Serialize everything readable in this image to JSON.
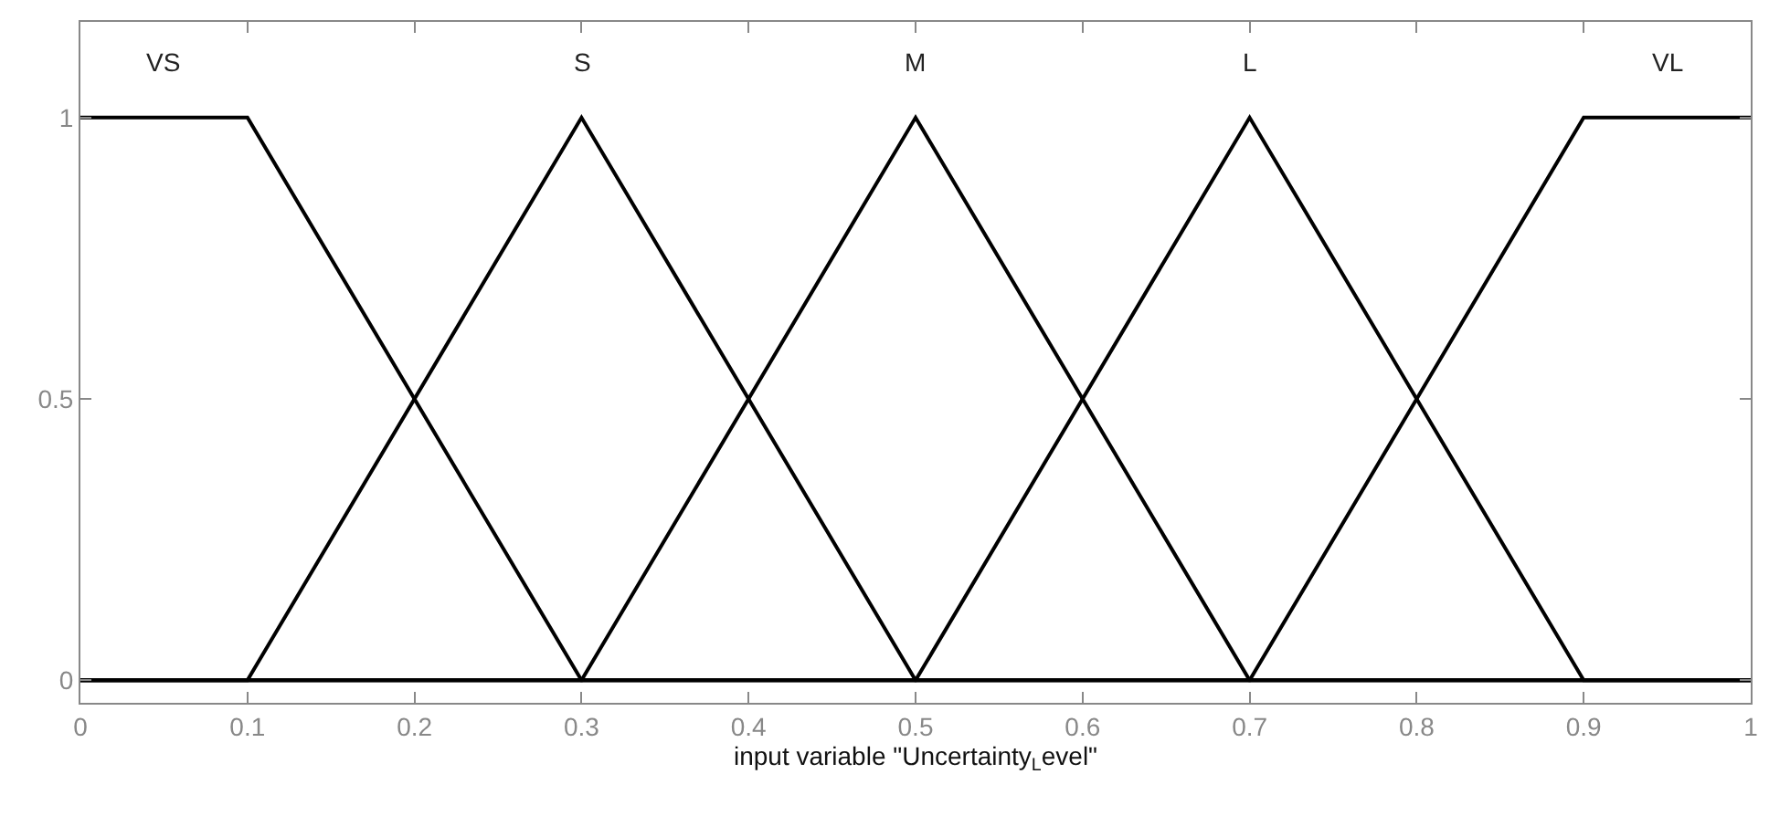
{
  "chart_data": {
    "type": "line",
    "xlabel": "input variable \"Uncertainty$_{L}$evel\"",
    "xlim": [
      0,
      1
    ],
    "ylim": [
      -0.04,
      1.17
    ],
    "xticks": [
      0,
      0.1,
      0.2,
      0.3,
      0.4,
      0.5,
      0.6,
      0.7,
      0.8,
      0.9,
      1
    ],
    "yticks": [
      0,
      0.5,
      1
    ],
    "grid": false,
    "legend": false,
    "marker": "none",
    "line_style": "solid",
    "series": [
      {
        "name": "VS",
        "color": "#000000",
        "x": [
          0,
          0.1,
          0.3,
          1
        ],
        "values": [
          1,
          1,
          0,
          0
        ]
      },
      {
        "name": "S",
        "color": "#000000",
        "x": [
          0,
          0.1,
          0.3,
          0.5,
          1
        ],
        "values": [
          0,
          0,
          1,
          0,
          0
        ]
      },
      {
        "name": "M",
        "color": "#000000",
        "x": [
          0,
          0.3,
          0.5,
          0.7,
          1
        ],
        "values": [
          0,
          0,
          1,
          0,
          0
        ]
      },
      {
        "name": "L",
        "color": "#000000",
        "x": [
          0,
          0.5,
          0.7,
          0.9,
          1
        ],
        "values": [
          0,
          0,
          1,
          0,
          0
        ]
      },
      {
        "name": "VL",
        "color": "#000000",
        "x": [
          0,
          0.7,
          0.9,
          1
        ],
        "values": [
          0,
          0,
          1,
          1
        ]
      }
    ]
  }
}
